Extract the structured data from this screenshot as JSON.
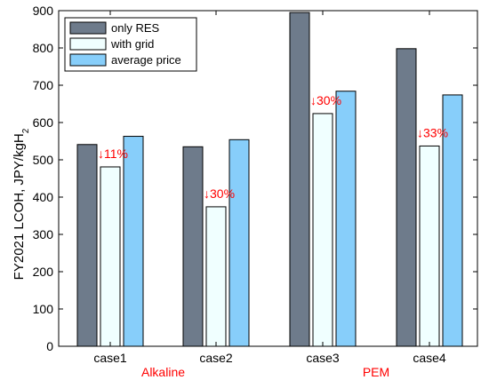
{
  "chart_data": {
    "type": "bar",
    "categories": [
      "case1",
      "case2",
      "case3",
      "case4"
    ],
    "series": [
      {
        "name": "only RES",
        "values": [
          541,
          535,
          895,
          798
        ],
        "color": "#6e7b8b"
      },
      {
        "name": "with grid",
        "values": [
          481,
          374,
          624,
          537
        ],
        "color": "#f0ffff"
      },
      {
        "name": "average price",
        "values": [
          563,
          554,
          684,
          674
        ],
        "color": "#87cefa"
      }
    ],
    "ylabel": "FY2021 LCOH, JPY/kgH",
    "ylabel_subscript": "2",
    "ylim": [
      0,
      900
    ],
    "yticks": [
      "0",
      "100",
      "200",
      "300",
      "400",
      "500",
      "600",
      "700",
      "800",
      "900"
    ],
    "grid": false,
    "legend_position": "top-left",
    "annotations": [
      {
        "category": "case1",
        "text": "↓11%"
      },
      {
        "category": "case2",
        "text": "↓30%"
      },
      {
        "category": "case3",
        "text": "↓30%"
      },
      {
        "category": "case4",
        "text": "↓33%"
      }
    ],
    "group_labels": [
      {
        "text": "Alkaline",
        "between": [
          "case1",
          "case2"
        ]
      },
      {
        "text": "PEM",
        "between": [
          "case3",
          "case4"
        ]
      }
    ],
    "annotation_color": "#ff0000"
  }
}
